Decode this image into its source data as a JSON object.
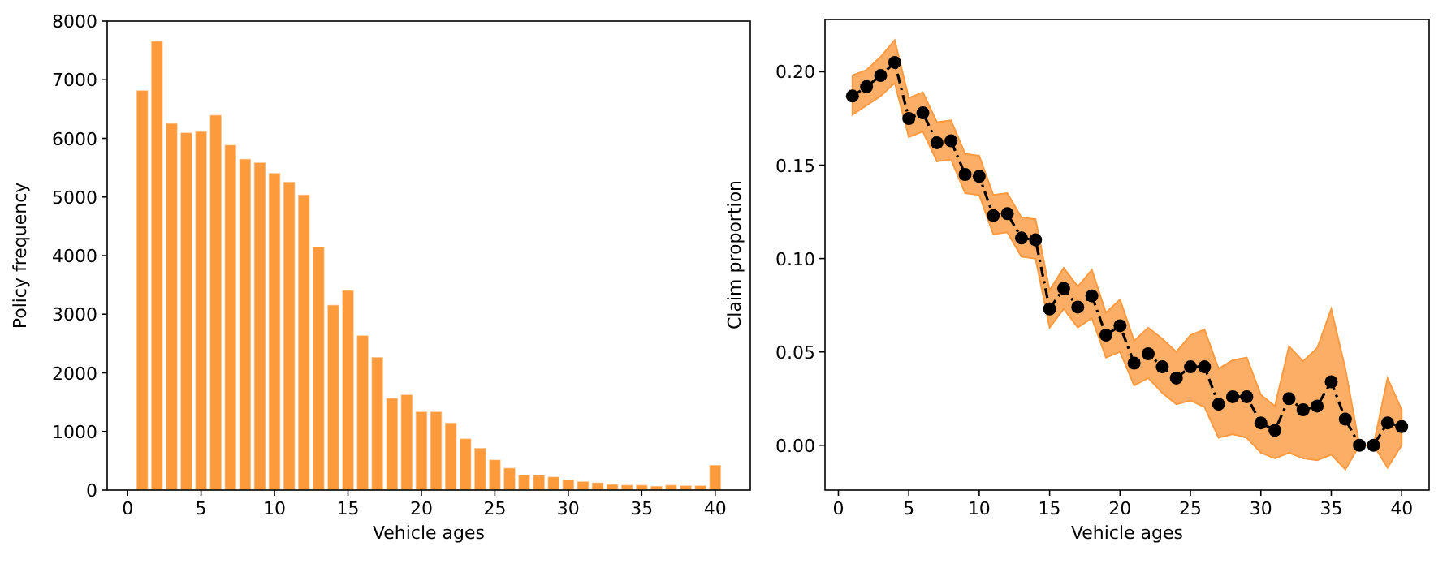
{
  "chart_data": [
    {
      "type": "bar",
      "xlabel": "Vehicle ages",
      "ylabel": "Policy frequency",
      "x": [
        1,
        2,
        3,
        4,
        5,
        6,
        7,
        8,
        9,
        10,
        11,
        12,
        13,
        14,
        15,
        16,
        17,
        18,
        19,
        20,
        21,
        22,
        23,
        24,
        25,
        26,
        27,
        28,
        29,
        30,
        31,
        32,
        33,
        34,
        35,
        36,
        37,
        38,
        39,
        40
      ],
      "values": [
        6820,
        7660,
        6260,
        6100,
        6120,
        6400,
        5890,
        5650,
        5590,
        5410,
        5260,
        5040,
        4150,
        3160,
        3410,
        2640,
        2270,
        1570,
        1630,
        1340,
        1340,
        1150,
        880,
        720,
        520,
        380,
        260,
        260,
        230,
        180,
        150,
        130,
        100,
        90,
        90,
        70,
        90,
        80,
        80,
        430
      ],
      "color": "#fd9a3c",
      "xlim": [
        -1.39,
        42.39
      ],
      "xticks": [
        0,
        5,
        10,
        15,
        20,
        25,
        30,
        35,
        40
      ],
      "ylim": [
        0,
        8000
      ],
      "yticks": [
        0,
        1000,
        2000,
        3000,
        4000,
        5000,
        6000,
        7000,
        8000
      ],
      "grid": false
    },
    {
      "type": "line",
      "xlabel": "Vehicle ages",
      "ylabel": "Claim proportion",
      "color": "#fb9a40",
      "marker": "circle",
      "line_style": "dashdot",
      "x": [
        1,
        2,
        3,
        4,
        5,
        6,
        7,
        8,
        9,
        10,
        11,
        12,
        13,
        14,
        15,
        16,
        17,
        18,
        19,
        20,
        21,
        22,
        23,
        24,
        25,
        26,
        27,
        28,
        29,
        30,
        31,
        32,
        33,
        34,
        35,
        36,
        37,
        38,
        39,
        40
      ],
      "series": [
        {
          "color": "#000000",
          "values": [
            0.187,
            0.192,
            0.198,
            0.205,
            0.175,
            0.178,
            0.162,
            0.163,
            0.145,
            0.144,
            0.123,
            0.124,
            0.111,
            0.11,
            0.073,
            0.084,
            0.074,
            0.08,
            0.059,
            0.064,
            0.044,
            0.049,
            0.042,
            0.036,
            0.042,
            0.042,
            0.022,
            0.026,
            0.026,
            0.012,
            0.008,
            0.025,
            0.019,
            0.021,
            0.034,
            0.014,
            0.0,
            0.0,
            0.012,
            0.01
          ],
          "lower": [
            0.177,
            0.182,
            0.187,
            0.194,
            0.165,
            0.168,
            0.152,
            0.153,
            0.135,
            0.134,
            0.113,
            0.114,
            0.101,
            0.1,
            0.063,
            0.073,
            0.063,
            0.068,
            0.047,
            0.05,
            0.032,
            0.036,
            0.028,
            0.022,
            0.024,
            0.0205,
            0.004,
            0.006,
            0.004,
            -0.004,
            -0.007,
            -0.004,
            -0.007,
            -0.008,
            -0.005,
            -0.013,
            0.0,
            0.0,
            -0.012,
            0.0
          ],
          "upper": [
            0.198,
            0.201,
            0.208,
            0.217,
            0.186,
            0.189,
            0.173,
            0.174,
            0.156,
            0.155,
            0.134,
            0.135,
            0.122,
            0.121,
            0.083,
            0.095,
            0.085,
            0.094,
            0.071,
            0.078,
            0.056,
            0.063,
            0.057,
            0.05,
            0.059,
            0.062,
            0.041,
            0.0455,
            0.047,
            0.027,
            0.021,
            0.053,
            0.045,
            0.052,
            0.073,
            0.041,
            0.0,
            0.0,
            0.036,
            0.019
          ]
        }
      ],
      "xlim": [
        -0.95,
        41.95
      ],
      "xticks": [
        0,
        5,
        10,
        15,
        20,
        25,
        30,
        35,
        40
      ],
      "ylim": [
        -0.024,
        0.228
      ],
      "yticks": [
        {
          "value": 0,
          "label": "0.00"
        },
        {
          "value": 0.05,
          "label": "0.05"
        },
        {
          "value": 0.1,
          "label": "0.10"
        },
        {
          "value": 0.15,
          "label": "0.15"
        },
        {
          "value": 0.2,
          "label": "0.20"
        }
      ],
      "grid": false
    }
  ]
}
